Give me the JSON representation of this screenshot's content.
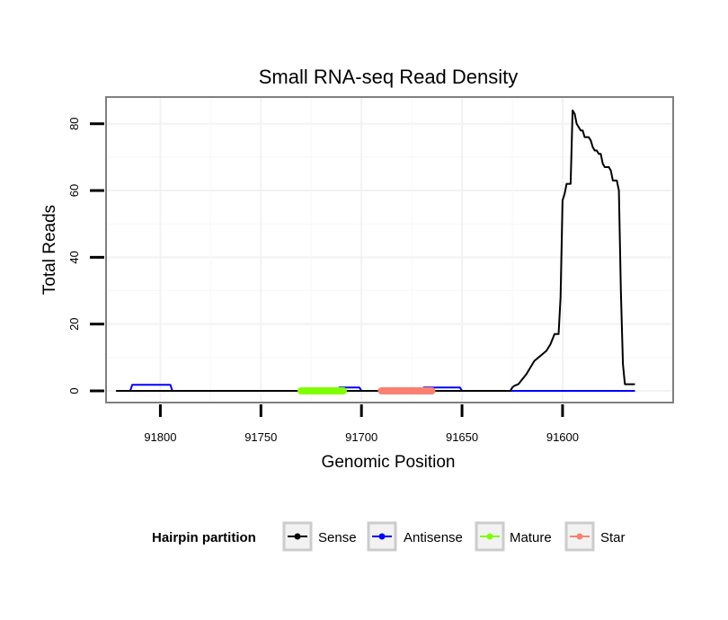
{
  "chart_data": {
    "type": "line",
    "title": "Small RNA-seq Read Density",
    "xlabel": "Genomic Position",
    "ylabel": "Total Reads",
    "xlim": [
      91827,
      91545
    ],
    "ylim": [
      -3.5,
      88
    ],
    "x_reversed": true,
    "grid": true,
    "x_ticks": [
      91800,
      91750,
      91700,
      91650,
      91600
    ],
    "x_tick_labels": [
      "91800",
      "91750",
      "91700",
      "91650",
      "91600"
    ],
    "y_ticks": [
      0,
      20,
      40,
      60,
      80
    ],
    "y_tick_labels": [
      "0",
      "20",
      "40",
      "60",
      "80"
    ],
    "legend": {
      "title": "Hairpin partition",
      "position": "bottom",
      "entries": [
        {
          "name": "Sense",
          "color": "#000000"
        },
        {
          "name": "Antisense",
          "color": "#0000ff"
        },
        {
          "name": "Mature",
          "color": "#7fff00"
        },
        {
          "name": "Star",
          "color": "#fa8072"
        }
      ]
    },
    "series": [
      {
        "name": "Antisense",
        "color": "#0000ff",
        "width": 2,
        "x": [
          91822,
          91815,
          91814,
          91795,
          91794,
          91712,
          91711,
          91701,
          91700,
          91670,
          91669,
          91651,
          91650,
          91564
        ],
        "y": [
          0,
          0,
          1.8,
          1.8,
          0,
          0,
          1,
          1,
          0,
          0,
          1,
          1,
          0,
          0
        ]
      },
      {
        "name": "Sense",
        "color": "#000000",
        "width": 2,
        "x": [
          91822,
          91626,
          91625,
          91624,
          91622,
          91620,
          91618,
          91616,
          91614,
          91612,
          91610,
          91608,
          91606,
          91604,
          91602,
          91601,
          91600,
          91599,
          91598,
          91597,
          91596,
          91595,
          91594,
          91593,
          91592,
          91591,
          91590,
          91589,
          91588,
          91587,
          91586,
          91585,
          91584,
          91583,
          91582,
          91581,
          91580,
          91579,
          91578,
          91577,
          91576,
          91575,
          91574,
          91573,
          91572,
          91571,
          91570,
          91569,
          91568,
          91567,
          91566,
          91565,
          91564
        ],
        "y": [
          0,
          0,
          1,
          1.5,
          2,
          3.5,
          5,
          7,
          9,
          10,
          11,
          12,
          14,
          17,
          17,
          28,
          57,
          59,
          62,
          62,
          62,
          84,
          83,
          80,
          79,
          78,
          78,
          76,
          76,
          76,
          75,
          73,
          72,
          72,
          71,
          71,
          68,
          67,
          67,
          67,
          66,
          63,
          63,
          63,
          60,
          30,
          8,
          2,
          2,
          2,
          2,
          2,
          2
        ]
      },
      {
        "name": "Mature",
        "color": "#7fff00",
        "width": 8,
        "x": [
          91730,
          91709
        ],
        "y": [
          0,
          0
        ]
      },
      {
        "name": "Star",
        "color": "#fa8072",
        "width": 8,
        "x": [
          91690,
          91665
        ],
        "y": [
          0,
          0
        ]
      }
    ]
  }
}
